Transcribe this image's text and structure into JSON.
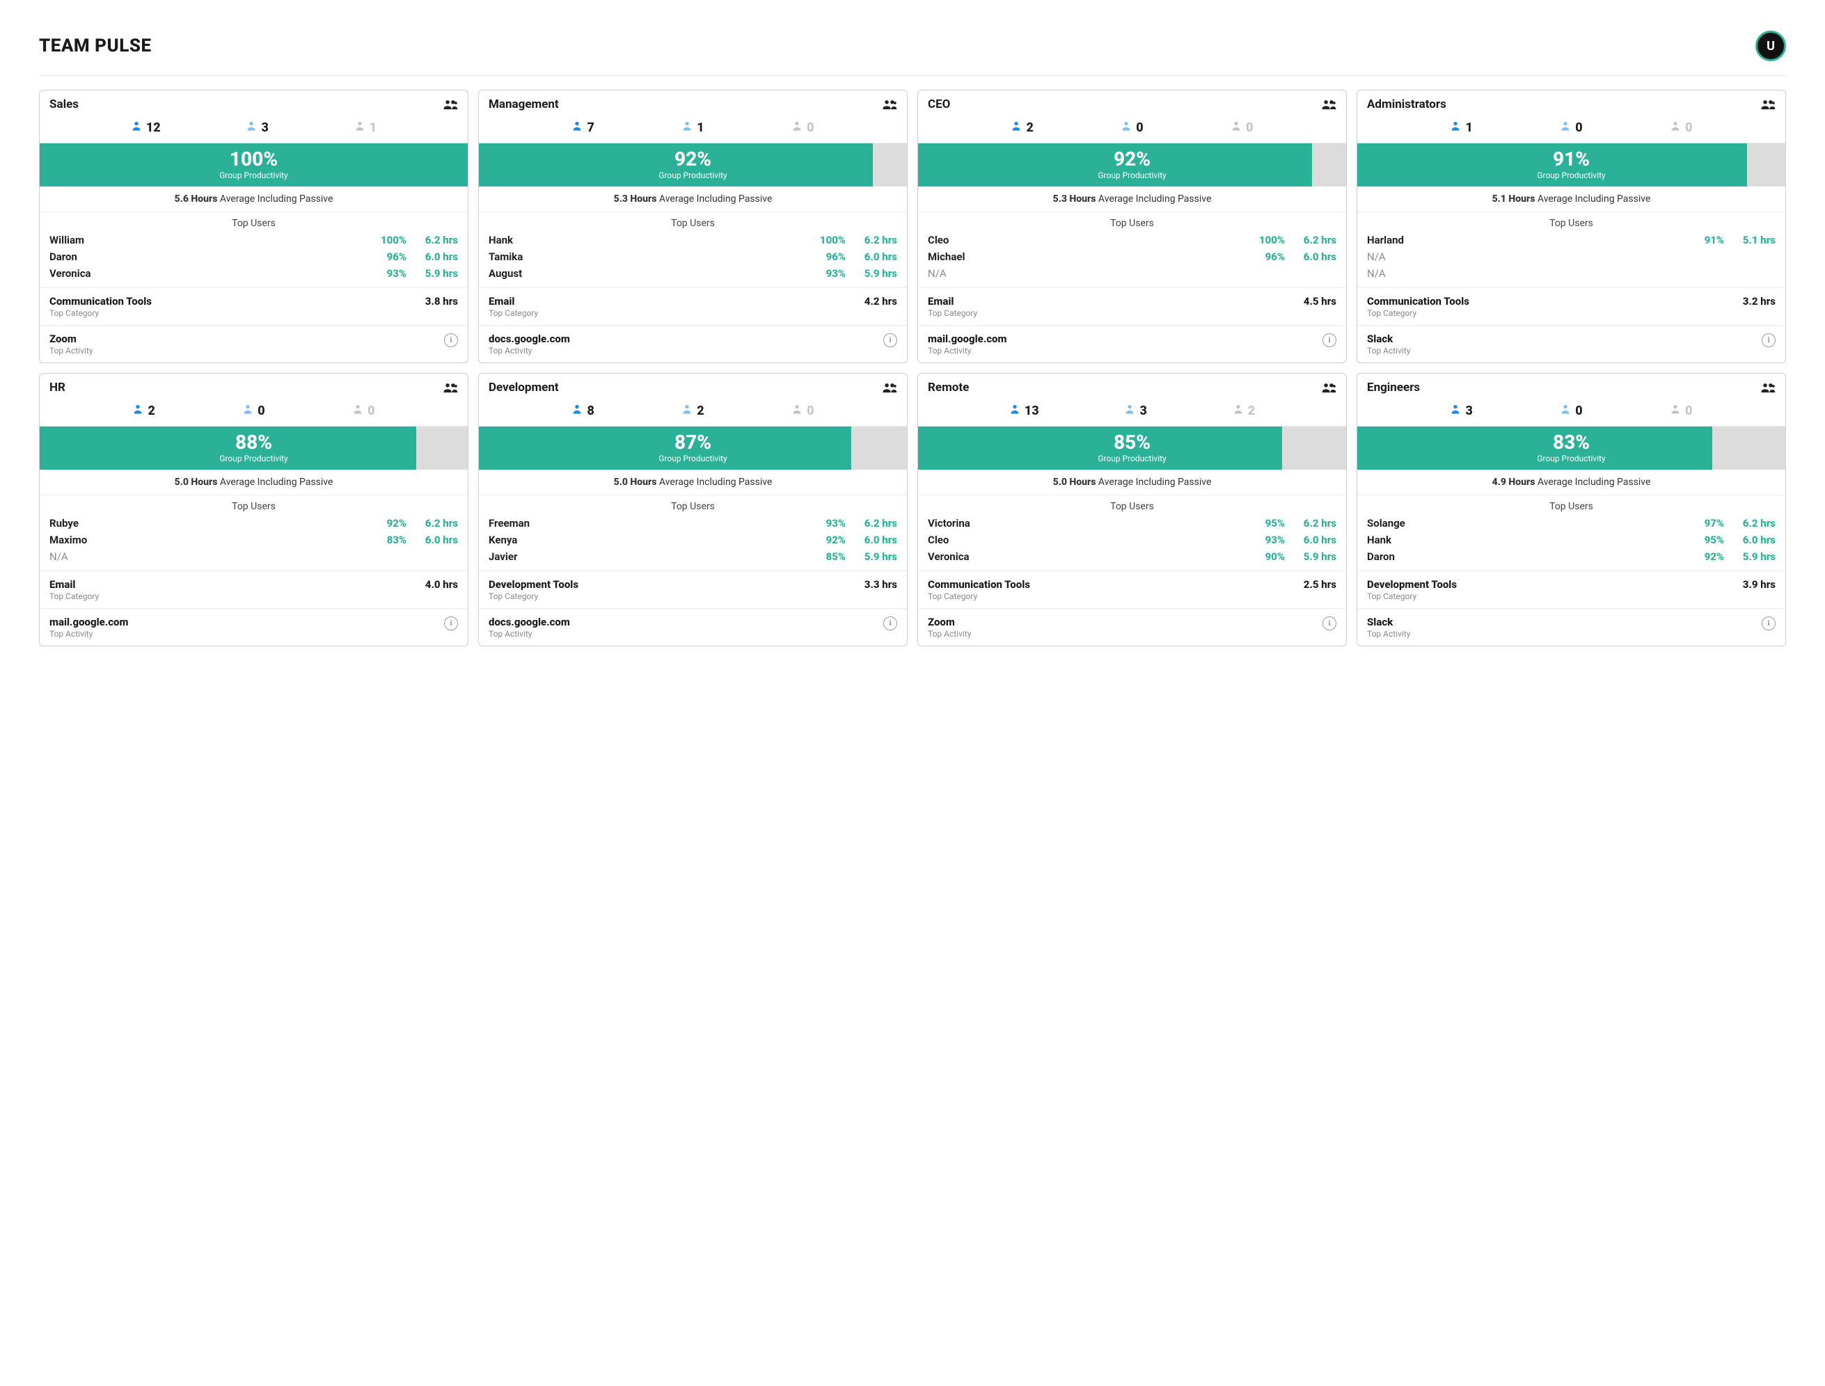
{
  "header": {
    "title": "TEAM PULSE",
    "avatar_initial": "U"
  },
  "labels": {
    "group_productivity": "Group Productivity",
    "avg_suffix": "Average Including Passive",
    "top_users": "Top Users",
    "top_category": "Top Category",
    "top_activity": "Top Activity",
    "na": "N/A"
  },
  "colors": {
    "teal": "#2ab198",
    "blue": "#1e88e5",
    "blue_light": "#7ec0f2",
    "grey_light": "#c4c4c4",
    "bar_bg": "#dcdcdc"
  },
  "cards": [
    {
      "name": "Sales",
      "counts": {
        "active": "12",
        "idle": "3",
        "off": "1"
      },
      "productivity_pct": "100%",
      "productivity_width": 100,
      "avg_hours": "5.6 Hours",
      "users": [
        {
          "name": "William",
          "pct": "100%",
          "hrs": "6.2 hrs"
        },
        {
          "name": "Daron",
          "pct": "96%",
          "hrs": "6.0 hrs"
        },
        {
          "name": "Veronica",
          "pct": "93%",
          "hrs": "5.9 hrs"
        }
      ],
      "top_category": {
        "name": "Communication Tools",
        "hrs": "3.8 hrs"
      },
      "top_activity": "Zoom"
    },
    {
      "name": "Management",
      "counts": {
        "active": "7",
        "idle": "1",
        "off": "0"
      },
      "productivity_pct": "92%",
      "productivity_width": 92,
      "avg_hours": "5.3 Hours",
      "users": [
        {
          "name": "Hank",
          "pct": "100%",
          "hrs": "6.2 hrs"
        },
        {
          "name": "Tamika",
          "pct": "96%",
          "hrs": "6.0 hrs"
        },
        {
          "name": "August",
          "pct": "93%",
          "hrs": "5.9 hrs"
        }
      ],
      "top_category": {
        "name": "Email",
        "hrs": "4.2 hrs"
      },
      "top_activity": "docs.google.com"
    },
    {
      "name": "CEO",
      "counts": {
        "active": "2",
        "idle": "0",
        "off": "0"
      },
      "productivity_pct": "92%",
      "productivity_width": 92,
      "avg_hours": "5.3 Hours",
      "users": [
        {
          "name": "Cleo",
          "pct": "100%",
          "hrs": "6.2 hrs"
        },
        {
          "name": "Michael",
          "pct": "96%",
          "hrs": "6.0 hrs"
        },
        {
          "name": null
        }
      ],
      "top_category": {
        "name": "Email",
        "hrs": "4.5 hrs"
      },
      "top_activity": "mail.google.com"
    },
    {
      "name": "Administrators",
      "counts": {
        "active": "1",
        "idle": "0",
        "off": "0"
      },
      "productivity_pct": "91%",
      "productivity_width": 91,
      "avg_hours": "5.1 Hours",
      "users": [
        {
          "name": "Harland",
          "pct": "91%",
          "hrs": "5.1 hrs"
        },
        {
          "name": null
        },
        {
          "name": null
        }
      ],
      "top_category": {
        "name": "Communication Tools",
        "hrs": "3.2 hrs"
      },
      "top_activity": "Slack"
    },
    {
      "name": "HR",
      "counts": {
        "active": "2",
        "idle": "0",
        "off": "0"
      },
      "productivity_pct": "88%",
      "productivity_width": 88,
      "avg_hours": "5.0 Hours",
      "users": [
        {
          "name": "Rubye",
          "pct": "92%",
          "hrs": "6.2 hrs"
        },
        {
          "name": "Maximo",
          "pct": "83%",
          "hrs": "6.0 hrs"
        },
        {
          "name": null
        }
      ],
      "top_category": {
        "name": "Email",
        "hrs": "4.0 hrs"
      },
      "top_activity": "mail.google.com"
    },
    {
      "name": "Development",
      "counts": {
        "active": "8",
        "idle": "2",
        "off": "0"
      },
      "productivity_pct": "87%",
      "productivity_width": 87,
      "avg_hours": "5.0 Hours",
      "users": [
        {
          "name": "Freeman",
          "pct": "93%",
          "hrs": "6.2 hrs"
        },
        {
          "name": "Kenya",
          "pct": "92%",
          "hrs": "6.0 hrs"
        },
        {
          "name": "Javier",
          "pct": "85%",
          "hrs": "5.9 hrs"
        }
      ],
      "top_category": {
        "name": "Development Tools",
        "hrs": "3.3 hrs"
      },
      "top_activity": "docs.google.com"
    },
    {
      "name": "Remote",
      "counts": {
        "active": "13",
        "idle": "3",
        "off": "2"
      },
      "productivity_pct": "85%",
      "productivity_width": 85,
      "avg_hours": "5.0 Hours",
      "users": [
        {
          "name": "Victorina",
          "pct": "95%",
          "hrs": "6.2 hrs"
        },
        {
          "name": "Cleo",
          "pct": "93%",
          "hrs": "6.0 hrs"
        },
        {
          "name": "Veronica",
          "pct": "90%",
          "hrs": "5.9 hrs"
        }
      ],
      "top_category": {
        "name": "Communication Tools",
        "hrs": "2.5 hrs"
      },
      "top_activity": "Zoom"
    },
    {
      "name": "Engineers",
      "counts": {
        "active": "3",
        "idle": "0",
        "off": "0"
      },
      "productivity_pct": "83%",
      "productivity_width": 83,
      "avg_hours": "4.9 Hours",
      "users": [
        {
          "name": "Solange",
          "pct": "97%",
          "hrs": "6.2 hrs"
        },
        {
          "name": "Hank",
          "pct": "95%",
          "hrs": "6.0 hrs"
        },
        {
          "name": "Daron",
          "pct": "92%",
          "hrs": "5.9 hrs"
        }
      ],
      "top_category": {
        "name": "Development Tools",
        "hrs": "3.9 hrs"
      },
      "top_activity": "Slack"
    }
  ]
}
